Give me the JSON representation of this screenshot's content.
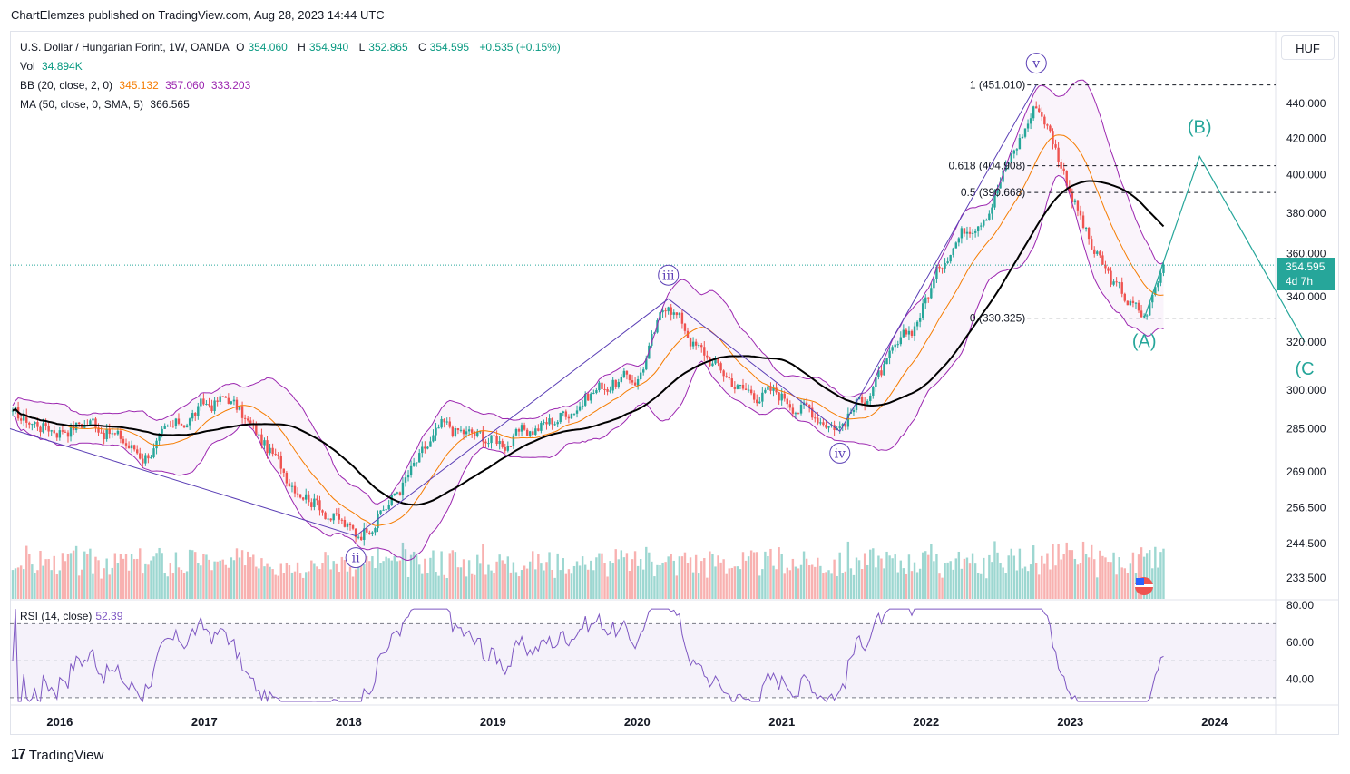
{
  "header": {
    "publisher_line": "ChartElemzes published on TradingView.com, Aug 28, 2023 14:44 UTC"
  },
  "legend": {
    "symbol": "U.S. Dollar / Hungarian Forint, 1W, OANDA",
    "o_label": "O",
    "o": "354.060",
    "h_label": "H",
    "h": "354.940",
    "l_label": "L",
    "l": "352.865",
    "c_label": "C",
    "c": "354.595",
    "change": "+0.535 (+0.15%)",
    "vol_label": "Vol",
    "vol": "34.894K",
    "bb_label": "BB (20, close, 2, 0)",
    "bb_basis": "345.132",
    "bb_upper": "357.060",
    "bb_lower": "333.203",
    "ma_label": "MA (50, close, 0, SMA, 5)",
    "ma": "366.565"
  },
  "rsi_legend": {
    "label": "RSI (14, close)",
    "value": "52.39"
  },
  "currency": "HUF",
  "price_tag": {
    "price": "354.595",
    "countdown": "4d 7h"
  },
  "footer": {
    "brand": "TradingView",
    "mark": "17"
  },
  "colors": {
    "up": "#26a69a",
    "down": "#ef5350",
    "bb": "#9c27b0",
    "basis": "#f57c00",
    "ma": "#000000",
    "rsi": "#7e57c2",
    "wave": "#5b3fb5",
    "projection": "#26a69a"
  },
  "chart_data": {
    "type": "candlestick",
    "interval": "1W",
    "x_axis": {
      "labels": [
        "2016",
        "2017",
        "2018",
        "2019",
        "2020",
        "2021",
        "2022",
        "2023",
        "2024"
      ]
    },
    "price_axis": {
      "scale": "log",
      "tick_labels": [
        "440.000",
        "420.000",
        "400.000",
        "380.000",
        "360.000",
        "340.000",
        "320.000",
        "300.000",
        "285.000",
        "269.000",
        "256.500",
        "244.500",
        "233.500"
      ]
    },
    "rsi_axis": {
      "tick_labels": [
        "80.00",
        "60.00",
        "40.00"
      ],
      "bands": [
        70,
        30
      ]
    },
    "price_path": [
      [
        "2015-08-31",
        290
      ],
      [
        "2015-12-28",
        285
      ],
      [
        "2016-03-28",
        288
      ],
      [
        "2016-08-01",
        275
      ],
      [
        "2016-12-26",
        293
      ],
      [
        "2017-03-06",
        297
      ],
      [
        "2017-07-31",
        268
      ],
      [
        "2018-01-22",
        247
      ],
      [
        "2018-04-16",
        258
      ],
      [
        "2018-08-27",
        285
      ],
      [
        "2019-02-04",
        280
      ],
      [
        "2019-06-03",
        288
      ],
      [
        "2019-10-07",
        302
      ],
      [
        "2020-01-06",
        305
      ],
      [
        "2020-03-23",
        339
      ],
      [
        "2020-06-01",
        318
      ],
      [
        "2020-09-28",
        300
      ],
      [
        "2021-01-04",
        298
      ],
      [
        "2021-05-31",
        286
      ],
      [
        "2021-09-06",
        305
      ],
      [
        "2021-11-29",
        325
      ],
      [
        "2022-03-07",
        365
      ],
      [
        "2022-06-13",
        385
      ],
      [
        "2022-10-10",
        440
      ],
      [
        "2022-10-31",
        432
      ],
      [
        "2022-12-26",
        398
      ],
      [
        "2023-02-27",
        362
      ],
      [
        "2023-04-24",
        345
      ],
      [
        "2023-07-10",
        330
      ],
      [
        "2023-08-28",
        354.595
      ]
    ],
    "wave_labels": [
      {
        "label": "ii",
        "date": "2018-01-22",
        "price": 247
      },
      {
        "label": "iii",
        "date": "2020-03-23",
        "price": 339
      },
      {
        "label": "iv",
        "date": "2021-05-31",
        "price": 284
      },
      {
        "label": "v",
        "date": "2022-10-10",
        "price": 451.01
      },
      {
        "label": "(A)",
        "date": "2023-07-10",
        "price": 330.325
      },
      {
        "label": "(B)",
        "date": "2023-11-27",
        "price": 410
      },
      {
        "label": "(C",
        "date": "2024-08-19",
        "price": 320
      }
    ],
    "impulse_lines": [
      [
        [
          "2015-08-31",
          285
        ],
        [
          "2018-01-22",
          247
        ],
        [
          "2020-03-23",
          339
        ],
        [
          "2021-05-31",
          284
        ],
        [
          "2022-10-10",
          451.01
        ]
      ]
    ],
    "correction_projection": [
      [
        "2023-07-10",
        330.325
      ],
      [
        "2023-11-27",
        410
      ],
      [
        "2024-08-19",
        320
      ]
    ],
    "fibonacci": [
      {
        "level": "1",
        "price": 451.01
      },
      {
        "level": "0.618",
        "price": 404.908
      },
      {
        "level": "0.5",
        "price": 390.668
      },
      {
        "level": "0",
        "price": 330.325
      }
    ],
    "last_price": 354.595
  }
}
